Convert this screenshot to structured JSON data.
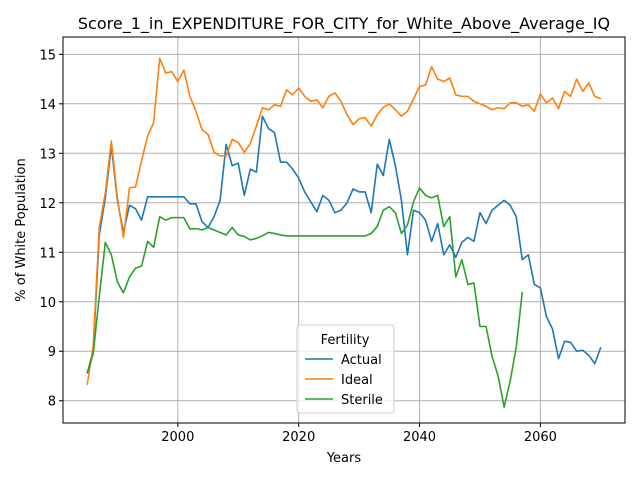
{
  "chart_data": {
    "type": "line",
    "title": "Score_1_in_EXPENDITURE_FOR_CITY_for_White_Above_Average_IQ",
    "xlabel": "Years",
    "ylabel": "% of White Population",
    "xlim": [
      1981,
      2074
    ],
    "ylim": [
      7.55,
      15.35
    ],
    "xticks": [
      2000,
      2020,
      2040,
      2060
    ],
    "yticks": [
      8,
      9,
      10,
      11,
      12,
      13,
      14,
      15
    ],
    "grid": true,
    "legend": {
      "title": "Fertility",
      "placement": "lower-center"
    },
    "series": [
      {
        "name": "Actual",
        "color": "#1f77b4",
        "x": [
          1985,
          1986,
          1987,
          1988,
          1989,
          1990,
          1991,
          1992,
          1993,
          1994,
          1995,
          1996,
          1997,
          1998,
          1999,
          2000,
          2001,
          2002,
          2003,
          2004,
          2005,
          2006,
          2007,
          2008,
          2009,
          2010,
          2011,
          2012,
          2013,
          2014,
          2015,
          2016,
          2017,
          2018,
          2019,
          2020,
          2021,
          2022,
          2023,
          2024,
          2025,
          2026,
          2027,
          2028,
          2029,
          2030,
          2031,
          2032,
          2033,
          2034,
          2035,
          2036,
          2037,
          2038,
          2039,
          2040,
          2041,
          2042,
          2043,
          2044,
          2045,
          2046,
          2047,
          2048,
          2049,
          2050,
          2051,
          2052,
          2053,
          2054,
          2055,
          2056,
          2057,
          2058,
          2059,
          2060,
          2061,
          2062,
          2063,
          2064,
          2065,
          2066,
          2067,
          2068,
          2069,
          2070
        ],
        "values": [
          8.55,
          9.0,
          11.35,
          12.1,
          13.15,
          12.05,
          11.4,
          11.95,
          11.88,
          11.65,
          12.12,
          12.12,
          12.12,
          12.12,
          12.12,
          12.12,
          12.12,
          11.98,
          11.98,
          11.62,
          11.5,
          11.72,
          12.05,
          13.18,
          12.75,
          12.8,
          12.15,
          12.68,
          12.62,
          13.75,
          13.5,
          13.42,
          12.82,
          12.82,
          12.68,
          12.5,
          12.22,
          12.02,
          11.82,
          12.15,
          12.05,
          11.8,
          11.85,
          12.0,
          12.28,
          12.22,
          12.22,
          11.8,
          12.78,
          12.55,
          13.28,
          12.75,
          12.05,
          10.95,
          11.85,
          11.8,
          11.65,
          11.22,
          11.58,
          10.95,
          11.15,
          10.9,
          11.2,
          11.3,
          11.22,
          11.8,
          11.58,
          11.85,
          11.95,
          12.05,
          11.95,
          11.72,
          10.85,
          10.95,
          10.35,
          10.28,
          9.7,
          9.45,
          8.85,
          9.2,
          9.18,
          9.0,
          9.02,
          8.92,
          8.75,
          9.08
        ]
      },
      {
        "name": "Ideal",
        "color": "#ff7f0e",
        "x": [
          1985,
          1986,
          1987,
          1988,
          1989,
          1990,
          1991,
          1992,
          1993,
          1994,
          1995,
          1996,
          1997,
          1998,
          1999,
          2000,
          2001,
          2002,
          2003,
          2004,
          2005,
          2006,
          2007,
          2008,
          2009,
          2010,
          2011,
          2012,
          2013,
          2014,
          2015,
          2016,
          2017,
          2018,
          2019,
          2020,
          2021,
          2022,
          2023,
          2024,
          2025,
          2026,
          2027,
          2028,
          2029,
          2030,
          2031,
          2032,
          2033,
          2034,
          2035,
          2036,
          2037,
          2038,
          2039,
          2040,
          2041,
          2042,
          2043,
          2044,
          2045,
          2046,
          2047,
          2048,
          2049,
          2050,
          2051,
          2052,
          2053,
          2054,
          2055,
          2056,
          2057,
          2058,
          2059,
          2060,
          2061,
          2062,
          2063,
          2064,
          2065,
          2066,
          2067,
          2068,
          2069,
          2070
        ],
        "values": [
          8.32,
          9.1,
          11.5,
          12.2,
          13.25,
          12.1,
          11.3,
          12.3,
          12.32,
          12.85,
          13.35,
          13.62,
          14.92,
          14.62,
          14.65,
          14.45,
          14.68,
          14.15,
          13.85,
          13.48,
          13.38,
          13.02,
          12.95,
          12.95,
          13.28,
          13.22,
          13.02,
          13.2,
          13.55,
          13.92,
          13.88,
          13.98,
          13.95,
          14.28,
          14.18,
          14.32,
          14.15,
          14.05,
          14.08,
          13.92,
          14.15,
          14.22,
          14.05,
          13.78,
          13.58,
          13.7,
          13.72,
          13.55,
          13.78,
          13.93,
          14.0,
          13.88,
          13.75,
          13.85,
          14.1,
          14.35,
          14.38,
          14.75,
          14.5,
          14.45,
          14.52,
          14.18,
          14.15,
          14.15,
          14.05,
          14.0,
          13.95,
          13.88,
          13.92,
          13.9,
          14.02,
          14.02,
          13.95,
          13.98,
          13.85,
          14.2,
          14.02,
          14.12,
          13.9,
          14.25,
          14.15,
          14.5,
          14.25,
          14.42,
          14.15,
          14.1
        ]
      },
      {
        "name": "Sterile",
        "color": "#2ca02c",
        "x": [
          1985,
          1986,
          1987,
          1988,
          1989,
          1990,
          1991,
          1992,
          1993,
          1994,
          1995,
          1996,
          1997,
          1998,
          1999,
          2000,
          2001,
          2002,
          2003,
          2004,
          2005,
          2006,
          2007,
          2008,
          2009,
          2010,
          2011,
          2012,
          2013,
          2014,
          2015,
          2016,
          2017,
          2018,
          2019,
          2020,
          2021,
          2022,
          2023,
          2024,
          2025,
          2026,
          2027,
          2028,
          2029,
          2030,
          2031,
          2032,
          2033,
          2034,
          2035,
          2036,
          2037,
          2038,
          2039,
          2040,
          2041,
          2042,
          2043,
          2044,
          2045,
          2046,
          2047,
          2048,
          2049,
          2050,
          2051,
          2052,
          2053,
          2054,
          2055,
          2056,
          2057
        ],
        "values": [
          8.55,
          8.95,
          10.1,
          11.2,
          10.95,
          10.4,
          10.18,
          10.5,
          10.68,
          10.72,
          11.22,
          11.1,
          11.72,
          11.65,
          11.7,
          11.7,
          11.7,
          11.47,
          11.48,
          11.45,
          11.5,
          11.45,
          11.4,
          11.35,
          11.5,
          11.35,
          11.32,
          11.25,
          11.28,
          11.33,
          11.4,
          11.38,
          11.35,
          11.33,
          11.33,
          11.33,
          11.33,
          11.33,
          11.33,
          11.33,
          11.33,
          11.33,
          11.33,
          11.33,
          11.33,
          11.33,
          11.33,
          11.38,
          11.52,
          11.85,
          11.92,
          11.8,
          11.38,
          11.55,
          12.02,
          12.3,
          12.15,
          12.1,
          12.15,
          11.52,
          11.72,
          10.5,
          10.85,
          10.35,
          10.38,
          9.5,
          9.5,
          8.9,
          8.5,
          7.87,
          8.4,
          9.08,
          10.2
        ]
      }
    ]
  }
}
